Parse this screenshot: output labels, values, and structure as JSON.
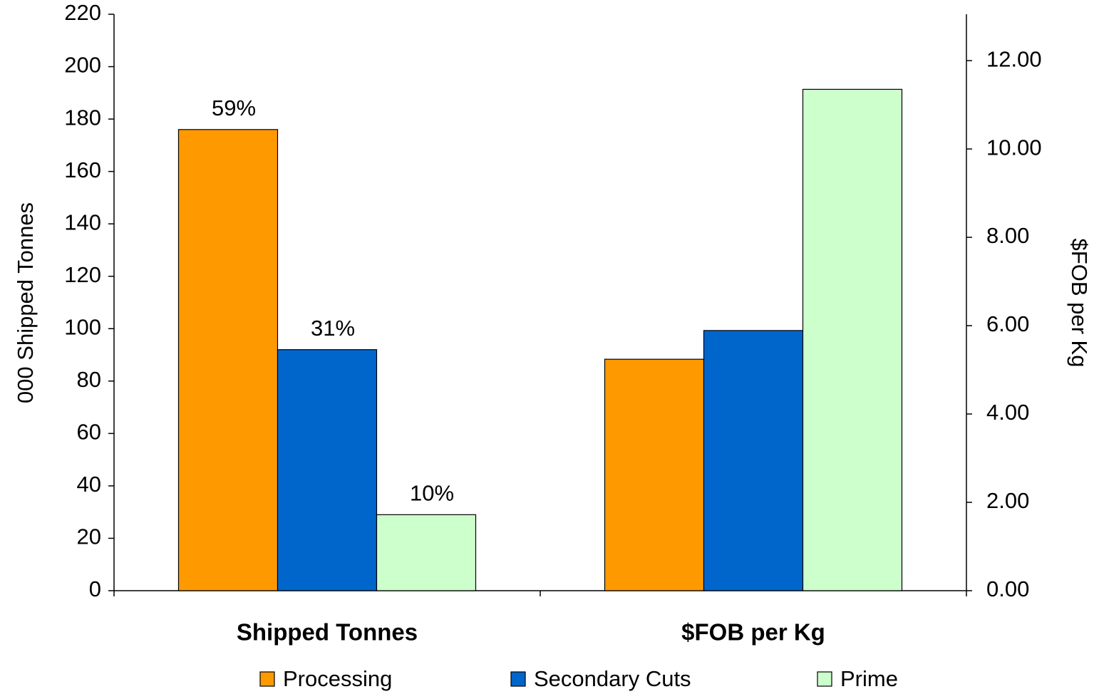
{
  "chart_data": {
    "type": "bar",
    "categories": [
      "Shipped Tonnes",
      "$FOB per Kg"
    ],
    "category_axis": [
      "y",
      "y2"
    ],
    "y_label": "000 Shipped Tonnes",
    "y2_label": "$FOB per Kg",
    "ylim": [
      0,
      220
    ],
    "yticks": [
      0,
      20,
      40,
      60,
      80,
      100,
      120,
      140,
      160,
      180,
      200,
      220
    ],
    "y2lim": [
      0,
      13.05
    ],
    "y2ticks": [
      {
        "value": 0,
        "label": "0.00"
      },
      {
        "value": 2,
        "label": "2.00"
      },
      {
        "value": 4,
        "label": "4.00"
      },
      {
        "value": 6,
        "label": "6.00"
      },
      {
        "value": 8,
        "label": "8.00"
      },
      {
        "value": 10,
        "label": "10.00"
      },
      {
        "value": 12,
        "label": "12.00"
      }
    ],
    "series": [
      {
        "name": "Processing",
        "color": "#FF9900",
        "values": [
          176,
          5.24
        ],
        "share_label": "59%"
      },
      {
        "name": "Secondary Cuts",
        "color": "#0066CC",
        "values": [
          92,
          5.89
        ],
        "share_label": "31%"
      },
      {
        "name": "Prime",
        "color": "#CCFFCC",
        "values": [
          29,
          11.35
        ],
        "share_label": "10%"
      }
    ],
    "legend": "bottom",
    "grid": false
  }
}
